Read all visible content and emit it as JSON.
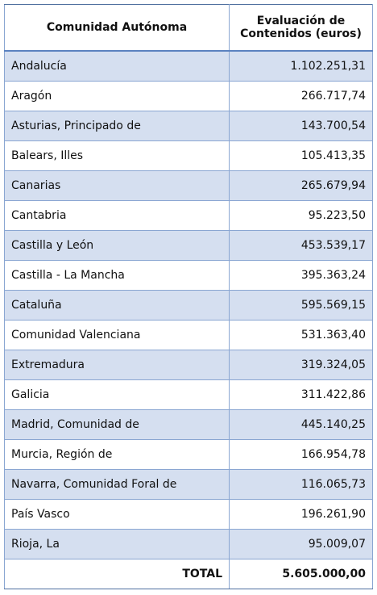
{
  "table": {
    "header": [
      "Comunidad Autónoma",
      "Evaluación de Contenidos (euros)"
    ],
    "rows": [
      [
        "Andalucía",
        "1.102.251,31"
      ],
      [
        "Aragón",
        "266.717,74"
      ],
      [
        "Asturias, Principado de",
        "143.700,54"
      ],
      [
        "Balears, Illes",
        "105.413,35"
      ],
      [
        "Canarias",
        "265.679,94"
      ],
      [
        "Cantabria",
        "95.223,50"
      ],
      [
        "Castilla y León",
        "453.539,17"
      ],
      [
        "Castilla - La Mancha",
        "395.363,24"
      ],
      [
        "Cataluña",
        "595.569,15"
      ],
      [
        "Comunidad Valenciana",
        "531.363,40"
      ],
      [
        "Extremadura",
        "319.324,05"
      ],
      [
        "Galicia",
        "311.422,86"
      ],
      [
        "Madrid, Comunidad de",
        "445.140,25"
      ],
      [
        "Murcia, Región de",
        "166.954,78"
      ],
      [
        "Navarra, Comunidad Foral de",
        "116.065,73"
      ],
      [
        "País Vasco",
        "196.261,90"
      ],
      [
        "Rioja, La",
        "95.009,07"
      ]
    ],
    "total": [
      "TOTAL",
      "5.605.000,00"
    ]
  }
}
